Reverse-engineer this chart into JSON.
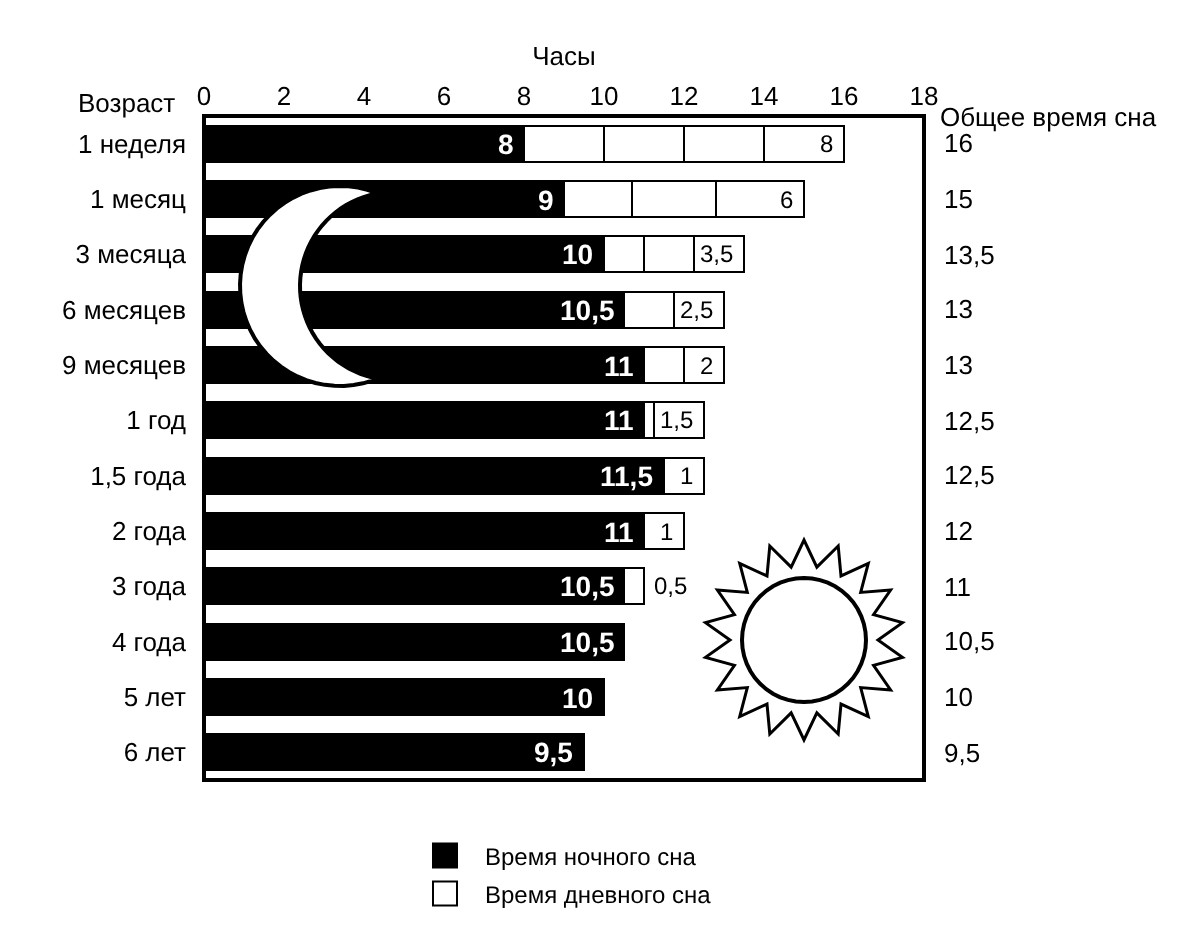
{
  "chart_data": {
    "type": "bar",
    "orientation": "horizontal",
    "stacked": true,
    "legend": "bottom",
    "xlabel": "Часы",
    "ylabel": "Возраст",
    "categories": [
      "1 неделя",
      "1 месяц",
      "3 месяца",
      "6 месяцев",
      "9 месяцев",
      "1 год",
      "1,5 года",
      "2 года",
      "3 года",
      "4 года",
      "5 лет",
      "6 лет"
    ],
    "xlim": [
      0,
      18
    ],
    "xticks": [
      0,
      2,
      4,
      6,
      8,
      10,
      12,
      14,
      16,
      18
    ],
    "series": [
      {
        "name": "Время ночного сна",
        "color": "#000000",
        "values": [
          8,
          9,
          10,
          10.5,
          11,
          11,
          11.5,
          11,
          10.5,
          10.5,
          10,
          9.5
        ],
        "value_labels": [
          "8",
          "9",
          "10",
          "10,5",
          "11",
          "11",
          "11,5",
          "11",
          "10,5",
          "10,5",
          "10",
          "9,5"
        ]
      },
      {
        "name": "Время дневного сна",
        "color": "#ffffff",
        "values": [
          2,
          1.7,
          1,
          1.25,
          1,
          0.25,
          1,
          1,
          0.5,
          null,
          null,
          null
        ]
      },
      {
        "color": "#ffffff",
        "values": [
          2,
          2.1,
          1.25,
          1.25,
          1,
          1.25,
          null,
          null,
          null,
          null,
          null,
          null
        ]
      },
      {
        "color": "#ffffff",
        "values": [
          2,
          2.2,
          1.25,
          null,
          null,
          null,
          null,
          null,
          null,
          null,
          null,
          null
        ]
      },
      {
        "color": "#ffffff",
        "values": [
          2,
          null,
          null,
          null,
          null,
          null,
          null,
          null,
          null,
          null,
          null,
          null
        ]
      }
    ],
    "annotations": [
      {
        "text": "8",
        "x": 16,
        "y": "1 неделя"
      },
      {
        "text": "6",
        "x": 15,
        "y": "1 месяц"
      },
      {
        "text": "3,5",
        "x": 13.5,
        "y": "3 месяца"
      },
      {
        "text": "2,5",
        "x": 13,
        "y": "6 месяцев"
      },
      {
        "text": "2",
        "x": 13,
        "y": "9 месяцев"
      },
      {
        "text": "1,5",
        "x": 12.5,
        "y": "1 год"
      },
      {
        "text": "1",
        "x": 12.5,
        "y": "1,5 года"
      },
      {
        "text": "1",
        "x": 12,
        "y": "2 года"
      },
      {
        "text": "0,5",
        "x": 11,
        "y": "3 года"
      }
    ],
    "y2label": "Общее время сна",
    "y2_categories": [
      "16",
      "15",
      "13,5",
      "13",
      "13",
      "12,5",
      "12,5",
      "12",
      "11",
      "10,5",
      "10",
      "9,5"
    ]
  }
}
